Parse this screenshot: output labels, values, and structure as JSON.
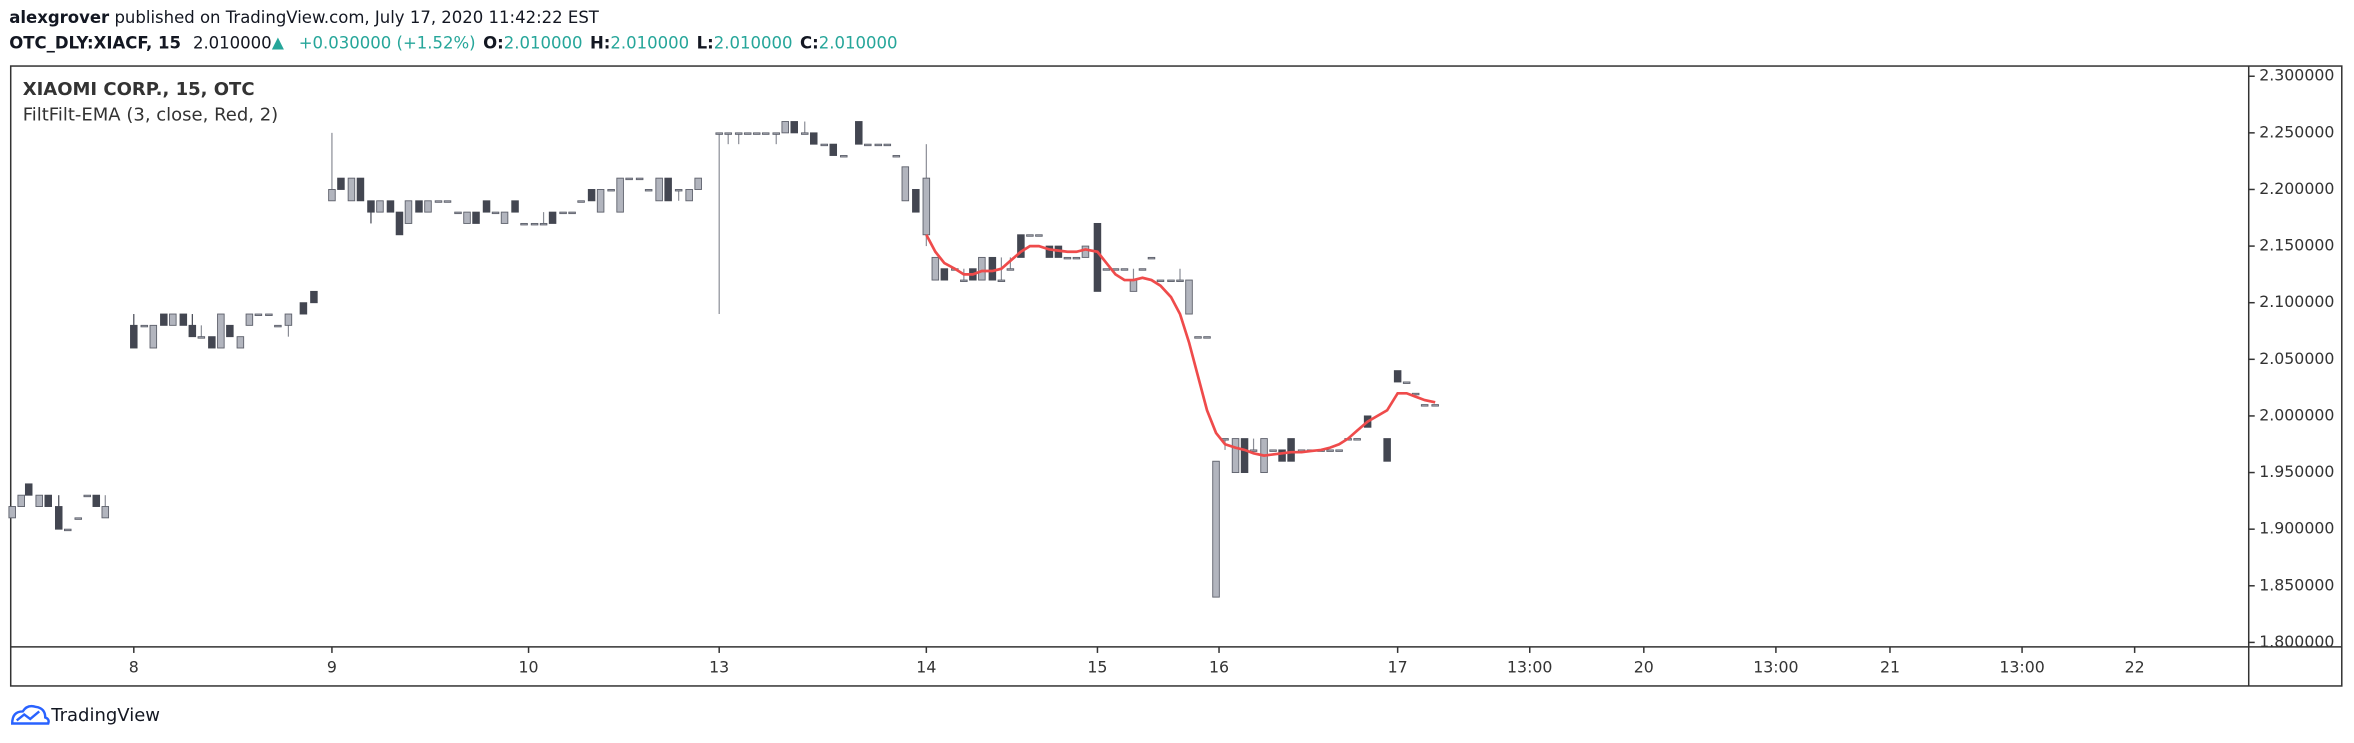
{
  "header": {
    "author": "alexgrover",
    "published": "published on TradingView.com, July 17, 2020 11:42:22 EST",
    "symbol": "OTC_DLY:XIACF, 15",
    "last": "2.010000",
    "change": "+0.030000 (+1.52%)",
    "ohlc": [
      {
        "label": "O:",
        "value": "2.010000"
      },
      {
        "label": "H:",
        "value": "2.010000"
      },
      {
        "label": "L:",
        "value": "2.010000"
      },
      {
        "label": "C:",
        "value": "2.010000"
      }
    ]
  },
  "footer": {
    "brand": "TradingView"
  },
  "chart_data": {
    "type": "candlestick",
    "title": "XIAOMI CORP., 15, OTC",
    "indicator": "FiltFilt-EMA (3, close, Red, 2)",
    "up_color": "#b2b5be",
    "down_color": "#434651",
    "grid": false,
    "xlim": [
      0,
      1491
    ],
    "xticks": [
      {
        "value": 82,
        "label": "8"
      },
      {
        "value": 214,
        "label": "9"
      },
      {
        "value": 345,
        "label": "10"
      },
      {
        "value": 472,
        "label": "13"
      },
      {
        "value": 610,
        "label": "14"
      },
      {
        "value": 724,
        "label": "15"
      },
      {
        "value": 805,
        "label": "16"
      },
      {
        "value": 924,
        "label": "17"
      },
      {
        "value": 1012,
        "label": "13:00"
      },
      {
        "value": 1088,
        "label": "20"
      },
      {
        "value": 1176,
        "label": "13:00"
      },
      {
        "value": 1252,
        "label": "21"
      },
      {
        "value": 1340,
        "label": "13:00"
      },
      {
        "value": 1415,
        "label": "22"
      }
    ],
    "ylim": [
      1.796,
      2.309
    ],
    "yticks": [
      {
        "value": 1.8,
        "label": "1.800000"
      },
      {
        "value": 1.85,
        "label": "1.850000"
      },
      {
        "value": 1.9,
        "label": "1.900000"
      },
      {
        "value": 1.95,
        "label": "1.950000"
      },
      {
        "value": 2,
        "label": "2.000000"
      },
      {
        "value": 2.05,
        "label": "2.050000"
      },
      {
        "value": 2.1,
        "label": "2.100000"
      },
      {
        "value": 2.15,
        "label": "2.150000"
      },
      {
        "value": 2.2,
        "label": "2.200000"
      },
      {
        "value": 2.25,
        "label": "2.250000"
      },
      {
        "value": 2.3,
        "label": "2.300000"
      }
    ],
    "candles": {
      "x": [
        1,
        7,
        12,
        19,
        25,
        32,
        38,
        45,
        51,
        57,
        63,
        82,
        89,
        95,
        102,
        108,
        115,
        121,
        127,
        134,
        140,
        146,
        153,
        159,
        165,
        172,
        178,
        185,
        195,
        202,
        214,
        220,
        227,
        233,
        240,
        246,
        253,
        259,
        265,
        272,
        278,
        285,
        291,
        298,
        304,
        310,
        317,
        323,
        329,
        336,
        342,
        349,
        355,
        361,
        368,
        374,
        380,
        387,
        393,
        400,
        406,
        412,
        419,
        425,
        432,
        438,
        445,
        452,
        458,
        472,
        478,
        485,
        491,
        497,
        503,
        510,
        516,
        522,
        529,
        535,
        542,
        548,
        555,
        565,
        571,
        578,
        584,
        590,
        596,
        603,
        610,
        616,
        622,
        629,
        635,
        641,
        647,
        654,
        660,
        666,
        673,
        679,
        685,
        692,
        698,
        704,
        710,
        716,
        724,
        730,
        736,
        742,
        748,
        754,
        760,
        766,
        773,
        779,
        785,
        791,
        797,
        803,
        809,
        816,
        822,
        828,
        835,
        841,
        847,
        853,
        860,
        866,
        873,
        879,
        885,
        891,
        897,
        904,
        917,
        924,
        930,
        936,
        942,
        949
      ],
      "open": [
        1.91,
        1.92,
        1.94,
        1.92,
        1.93,
        1.92,
        1.9,
        1.91,
        1.93,
        1.93,
        1.91,
        2.08,
        2.08,
        2.06,
        2.09,
        2.08,
        2.09,
        2.08,
        2.07,
        2.07,
        2.06,
        2.08,
        2.06,
        2.08,
        2.09,
        2.09,
        2.08,
        2.08,
        2.1,
        2.11,
        2.19,
        2.21,
        2.19,
        2.21,
        2.19,
        2.18,
        2.19,
        2.18,
        2.17,
        2.19,
        2.18,
        2.19,
        2.19,
        2.18,
        2.17,
        2.18,
        2.19,
        2.18,
        2.17,
        2.19,
        2.17,
        2.17,
        2.17,
        2.18,
        2.18,
        2.18,
        2.19,
        2.2,
        2.18,
        2.2,
        2.18,
        2.21,
        2.21,
        2.2,
        2.19,
        2.21,
        2.2,
        2.19,
        2.2,
        2.25,
        2.25,
        2.25,
        2.25,
        2.25,
        2.25,
        2.25,
        2.25,
        2.26,
        2.25,
        2.25,
        2.24,
        2.24,
        2.23,
        2.26,
        2.24,
        2.24,
        2.24,
        2.23,
        2.19,
        2.2,
        2.16,
        2.12,
        2.13,
        2.13,
        2.12,
        2.13,
        2.12,
        2.14,
        2.12,
        2.13,
        2.16,
        2.16,
        2.16,
        2.15,
        2.15,
        2.14,
        2.14,
        2.14,
        2.17,
        2.13,
        2.13,
        2.13,
        2.11,
        2.13,
        2.14,
        2.12,
        2.12,
        2.12,
        2.09,
        2.07,
        2.07,
        1.84,
        1.98,
        1.95,
        1.98,
        1.97,
        1.95,
        1.97,
        1.97,
        1.98,
        1.97,
        1.97,
        1.97,
        1.97,
        1.97,
        1.98,
        1.98,
        2,
        1.98,
        2.04,
        2.03,
        2.02,
        2.01,
        2.01
      ],
      "high": [
        1.92,
        1.93,
        1.94,
        1.93,
        1.93,
        1.93,
        1.9,
        1.91,
        1.93,
        1.93,
        1.93,
        2.09,
        2.08,
        2.08,
        2.09,
        2.09,
        2.09,
        2.09,
        2.08,
        2.07,
        2.09,
        2.08,
        2.07,
        2.09,
        2.09,
        2.09,
        2.08,
        2.09,
        2.1,
        2.11,
        2.25,
        2.21,
        2.21,
        2.21,
        2.19,
        2.19,
        2.19,
        2.18,
        2.19,
        2.19,
        2.19,
        2.19,
        2.19,
        2.18,
        2.18,
        2.18,
        2.19,
        2.18,
        2.18,
        2.19,
        2.17,
        2.17,
        2.18,
        2.18,
        2.18,
        2.18,
        2.19,
        2.2,
        2.2,
        2.2,
        2.21,
        2.21,
        2.21,
        2.2,
        2.21,
        2.21,
        2.2,
        2.2,
        2.21,
        2.25,
        2.25,
        2.25,
        2.25,
        2.25,
        2.25,
        2.25,
        2.26,
        2.26,
        2.26,
        2.25,
        2.24,
        2.24,
        2.23,
        2.26,
        2.24,
        2.24,
        2.24,
        2.23,
        2.22,
        2.2,
        2.24,
        2.14,
        2.13,
        2.13,
        2.13,
        2.13,
        2.14,
        2.14,
        2.14,
        2.14,
        2.16,
        2.16,
        2.16,
        2.15,
        2.15,
        2.14,
        2.14,
        2.15,
        2.17,
        2.13,
        2.13,
        2.13,
        2.13,
        2.13,
        2.14,
        2.12,
        2.12,
        2.13,
        2.12,
        2.07,
        2.07,
        1.96,
        1.98,
        1.98,
        1.98,
        1.98,
        1.98,
        1.97,
        1.97,
        1.98,
        1.97,
        1.97,
        1.97,
        1.97,
        1.97,
        1.98,
        1.98,
        2,
        1.98,
        2.04,
        2.03,
        2.02,
        2.01,
        2.01
      ],
      "low": [
        1.91,
        1.92,
        1.93,
        1.92,
        1.92,
        1.9,
        1.9,
        1.91,
        1.93,
        1.92,
        1.91,
        2.06,
        2.08,
        2.06,
        2.08,
        2.08,
        2.08,
        2.07,
        2.07,
        2.06,
        2.06,
        2.07,
        2.06,
        2.08,
        2.09,
        2.09,
        2.08,
        2.07,
        2.09,
        2.1,
        2.19,
        2.2,
        2.19,
        2.19,
        2.17,
        2.18,
        2.18,
        2.16,
        2.17,
        2.18,
        2.18,
        2.19,
        2.19,
        2.18,
        2.17,
        2.17,
        2.18,
        2.18,
        2.17,
        2.18,
        2.17,
        2.17,
        2.17,
        2.17,
        2.18,
        2.18,
        2.19,
        2.19,
        2.18,
        2.2,
        2.18,
        2.21,
        2.21,
        2.2,
        2.19,
        2.19,
        2.19,
        2.19,
        2.2,
        2.09,
        2.24,
        2.24,
        2.25,
        2.25,
        2.25,
        2.24,
        2.25,
        2.25,
        2.25,
        2.24,
        2.24,
        2.23,
        2.23,
        2.24,
        2.24,
        2.24,
        2.24,
        2.23,
        2.19,
        2.18,
        2.15,
        2.12,
        2.12,
        2.13,
        2.12,
        2.12,
        2.12,
        2.12,
        2.12,
        2.13,
        2.14,
        2.16,
        2.16,
        2.14,
        2.14,
        2.14,
        2.14,
        2.14,
        2.11,
        2.13,
        2.13,
        2.13,
        2.11,
        2.13,
        2.14,
        2.12,
        2.12,
        2.12,
        2.09,
        2.07,
        2.07,
        1.84,
        1.97,
        1.95,
        1.95,
        1.97,
        1.95,
        1.97,
        1.96,
        1.96,
        1.97,
        1.97,
        1.97,
        1.97,
        1.97,
        1.98,
        1.98,
        1.99,
        1.96,
        2.03,
        2.03,
        2.02,
        2.01,
        2.01
      ],
      "close": [
        1.92,
        1.93,
        1.93,
        1.93,
        1.92,
        1.9,
        1.9,
        1.91,
        1.93,
        1.92,
        1.92,
        2.06,
        2.08,
        2.08,
        2.08,
        2.09,
        2.08,
        2.07,
        2.07,
        2.06,
        2.09,
        2.07,
        2.07,
        2.09,
        2.09,
        2.09,
        2.08,
        2.09,
        2.09,
        2.1,
        2.2,
        2.2,
        2.21,
        2.19,
        2.18,
        2.19,
        2.18,
        2.16,
        2.19,
        2.18,
        2.19,
        2.19,
        2.19,
        2.18,
        2.18,
        2.17,
        2.18,
        2.18,
        2.18,
        2.18,
        2.17,
        2.17,
        2.17,
        2.17,
        2.18,
        2.18,
        2.19,
        2.19,
        2.2,
        2.2,
        2.21,
        2.21,
        2.21,
        2.2,
        2.21,
        2.19,
        2.2,
        2.2,
        2.21,
        2.25,
        2.25,
        2.25,
        2.25,
        2.25,
        2.25,
        2.25,
        2.26,
        2.25,
        2.25,
        2.24,
        2.24,
        2.23,
        2.23,
        2.24,
        2.24,
        2.24,
        2.24,
        2.23,
        2.22,
        2.18,
        2.21,
        2.14,
        2.12,
        2.13,
        2.12,
        2.12,
        2.14,
        2.12,
        2.12,
        2.13,
        2.14,
        2.16,
        2.16,
        2.14,
        2.14,
        2.14,
        2.14,
        2.15,
        2.11,
        2.13,
        2.13,
        2.13,
        2.12,
        2.13,
        2.14,
        2.12,
        2.12,
        2.12,
        2.12,
        2.07,
        2.07,
        1.96,
        1.98,
        1.98,
        1.95,
        1.97,
        1.98,
        1.97,
        1.96,
        1.96,
        1.97,
        1.97,
        1.97,
        1.97,
        1.97,
        1.98,
        1.98,
        1.99,
        1.96,
        2.03,
        2.03,
        2.02,
        2.01,
        2.01
      ]
    },
    "ema": {
      "color": "#ef4b4b",
      "x": [
        610,
        616,
        622,
        629,
        635,
        641,
        647,
        654,
        660,
        666,
        673,
        679,
        685,
        692,
        698,
        704,
        710,
        716,
        724,
        730,
        736,
        742,
        748,
        754,
        760,
        766,
        773,
        779,
        785,
        791,
        797,
        803,
        809,
        816,
        822,
        828,
        835,
        841,
        847,
        853,
        860,
        866,
        873,
        879,
        885,
        891,
        897,
        904,
        917,
        924,
        930,
        936,
        942,
        949
      ],
      "values": [
        2.16,
        2.145,
        2.135,
        2.13,
        2.125,
        2.125,
        2.128,
        2.128,
        2.13,
        2.137,
        2.145,
        2.15,
        2.15,
        2.147,
        2.146,
        2.145,
        2.145,
        2.147,
        2.145,
        2.135,
        2.125,
        2.12,
        2.12,
        2.122,
        2.12,
        2.115,
        2.105,
        2.09,
        2.065,
        2.035,
        2.005,
        1.985,
        1.975,
        1.972,
        1.97,
        1.967,
        1.965,
        1.966,
        1.967,
        1.968,
        1.968,
        1.969,
        1.97,
        1.972,
        1.975,
        1.98,
        1.987,
        1.995,
        2.005,
        2.02,
        2.02,
        2.017,
        2.014,
        2.012
      ]
    }
  }
}
